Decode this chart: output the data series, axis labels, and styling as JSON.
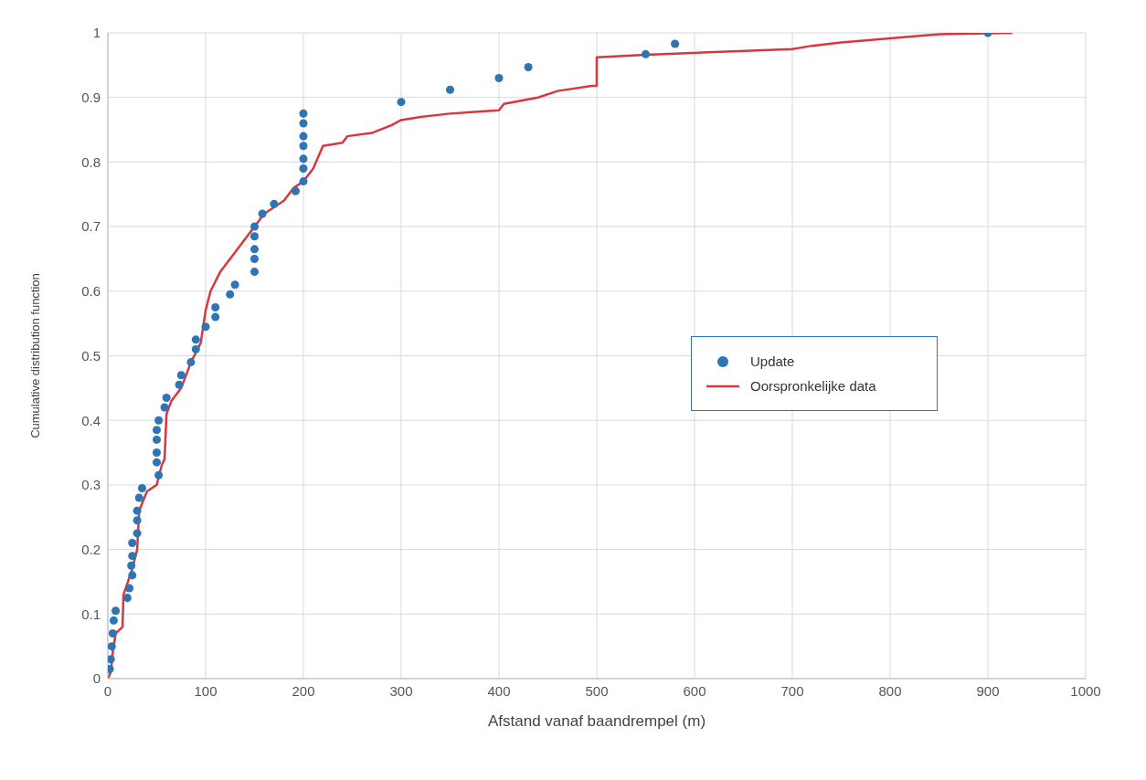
{
  "chart_data": {
    "type": "scatter",
    "xlabel": "Afstand vanaf baandrempel (m)",
    "ylabel": "Cumulative distribution function",
    "xlim": [
      0,
      1000
    ],
    "ylim": [
      0,
      1
    ],
    "xticks": [
      0,
      100,
      200,
      300,
      400,
      500,
      600,
      700,
      800,
      900,
      1000
    ],
    "yticks": [
      0,
      0.1,
      0.2,
      0.3,
      0.4,
      0.5,
      0.6,
      0.7,
      0.8,
      0.9,
      1
    ],
    "grid": true,
    "legend": "right",
    "series": [
      {
        "name": "Update",
        "marker": "circle",
        "color": "#2e75b6",
        "x": [
          2,
          3,
          4,
          5,
          6,
          8,
          20,
          22,
          25,
          24,
          25,
          25,
          30,
          30,
          30,
          32,
          35,
          52,
          50,
          50,
          50,
          50,
          52,
          58,
          60,
          73,
          75,
          85,
          90,
          90,
          100,
          110,
          110,
          125,
          130,
          150,
          150,
          150,
          150,
          150,
          158,
          170,
          192,
          200,
          200,
          200,
          200,
          200,
          200,
          200,
          300,
          350,
          400,
          430,
          550,
          580,
          900
        ],
        "values": [
          0.015,
          0.03,
          0.05,
          0.07,
          0.09,
          0.105,
          0.125,
          0.14,
          0.16,
          0.175,
          0.19,
          0.21,
          0.225,
          0.245,
          0.26,
          0.28,
          0.295,
          0.315,
          0.335,
          0.35,
          0.37,
          0.385,
          0.4,
          0.42,
          0.435,
          0.455,
          0.47,
          0.49,
          0.51,
          0.525,
          0.545,
          0.56,
          0.575,
          0.595,
          0.61,
          0.63,
          0.65,
          0.665,
          0.685,
          0.7,
          0.72,
          0.735,
          0.755,
          0.77,
          0.79,
          0.805,
          0.825,
          0.84,
          0.86,
          0.875,
          0.893,
          0.912,
          0.93,
          0.947,
          0.967,
          0.983,
          1
        ]
      },
      {
        "name": "Oorspronkelijke data",
        "type": "line",
        "marker": "none",
        "color": "#d9363e",
        "x": [
          0,
          3,
          5,
          8,
          15,
          16,
          25,
          30,
          32,
          40,
          50,
          55,
          58,
          60,
          65,
          75,
          85,
          95,
          100,
          105,
          115,
          120,
          135,
          150,
          160,
          180,
          190,
          200,
          210,
          220,
          240,
          245,
          270,
          290,
          300,
          320,
          350,
          400,
          405,
          440,
          460,
          495,
          500,
          500,
          550,
          700,
          720,
          750,
          850,
          925
        ],
        "values": [
          0,
          0.01,
          0.04,
          0.07,
          0.08,
          0.13,
          0.17,
          0.2,
          0.26,
          0.29,
          0.3,
          0.33,
          0.34,
          0.41,
          0.43,
          0.45,
          0.49,
          0.52,
          0.57,
          0.6,
          0.63,
          0.64,
          0.67,
          0.7,
          0.72,
          0.74,
          0.76,
          0.77,
          0.79,
          0.825,
          0.83,
          0.84,
          0.845,
          0.857,
          0.865,
          0.87,
          0.875,
          0.88,
          0.89,
          0.9,
          0.91,
          0.918,
          0.918,
          0.962,
          0.966,
          0.975,
          0.98,
          0.985,
          0.998,
          1
        ]
      }
    ]
  }
}
